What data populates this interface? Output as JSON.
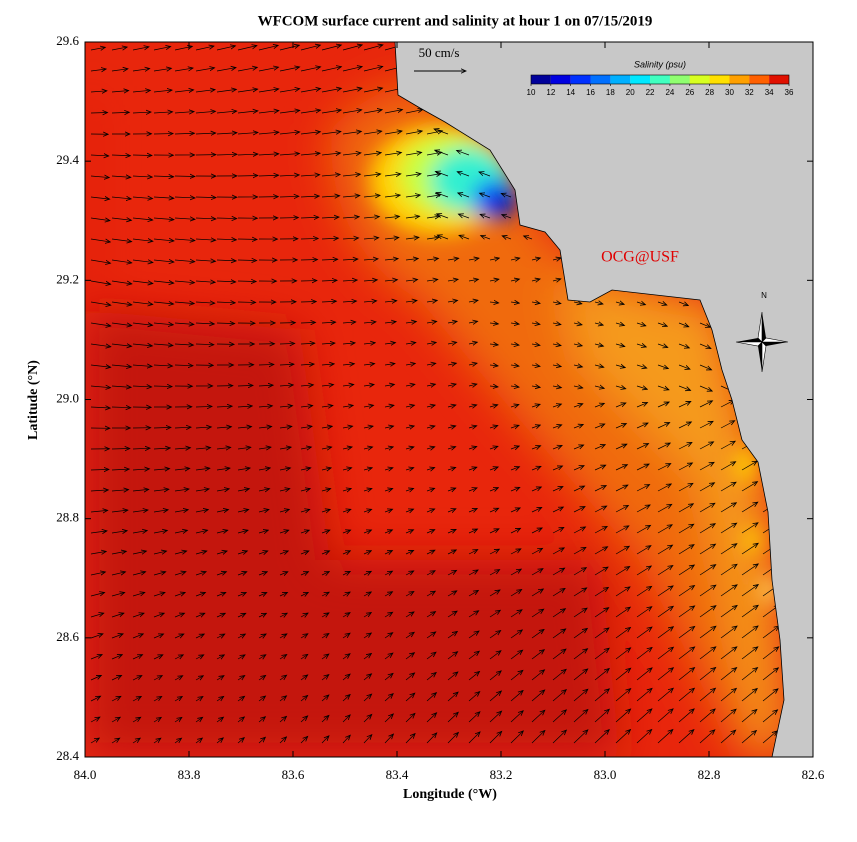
{
  "map": {
    "title": "WFCOM surface current and salinity at hour 1 on 07/15/2019",
    "x_label": "Longitude (°W)",
    "y_label": "Latitude (°N)",
    "xlim": [
      84,
      82.6
    ],
    "ylim": [
      28.4,
      29.6
    ],
    "xticks": [
      {
        "value": 84,
        "label": "84.0"
      },
      83.8,
      83.6,
      83.4,
      83.2,
      {
        "value": 83,
        "label": "83.0"
      },
      82.8,
      82.6
    ],
    "yticks": [
      28.4,
      28.6,
      28.8,
      {
        "value": 29,
        "label": "29.0"
      },
      29.2,
      29.4,
      29.6
    ],
    "scale_label": "50 cm/s",
    "watermark": "OCG@USF",
    "compass_label": "N",
    "colorbar": {
      "title": "Salinity (psu)",
      "ticks": [
        10,
        12,
        14,
        16,
        18,
        20,
        22,
        24,
        26,
        28,
        30,
        32,
        34,
        36
      ],
      "colors": [
        "#00009a",
        "#0000e0",
        "#0030ff",
        "#0070ff",
        "#00b0ff",
        "#00e8ff",
        "#40ffc0",
        "#90ff70",
        "#d8ff20",
        "#ffe000",
        "#ffa000",
        "#ff6000",
        "#e01000",
        "#900000"
      ]
    }
  }
}
